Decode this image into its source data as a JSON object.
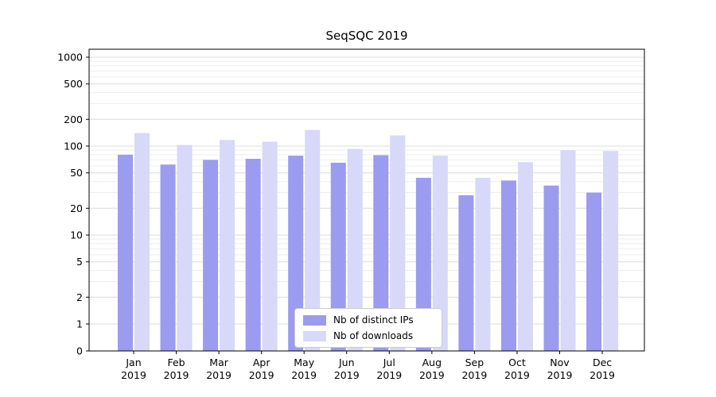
{
  "chart_data": {
    "type": "bar",
    "title": "SeqSQC 2019",
    "yscale": "symlog",
    "grid": "horizontal major + log minor gridlines",
    "legend_position": "bottom-center-inside",
    "background_color": "#ffffff",
    "categories": [
      "Jan 2019",
      "Feb 2019",
      "Mar 2019",
      "Apr 2019",
      "May 2019",
      "Jun 2019",
      "Jul 2019",
      "Aug 2019",
      "Sep 2019",
      "Oct 2019",
      "Nov 2019",
      "Dec 2019"
    ],
    "series": [
      {
        "name": "Nb of distinct IPs",
        "color": "#9b9bef",
        "values": [
          80,
          62,
          70,
          72,
          78,
          65,
          79,
          44,
          28,
          41,
          36,
          30
        ]
      },
      {
        "name": "Nb of downloads",
        "color": "#d8d8f8",
        "values": [
          140,
          103,
          117,
          112,
          152,
          93,
          132,
          78,
          44,
          66,
          90,
          88
        ]
      }
    ],
    "yticks": [
      0,
      1,
      2,
      5,
      10,
      20,
      50,
      100,
      200,
      500,
      1000
    ],
    "ylim": [
      0,
      1300
    ],
    "xlabel": "",
    "ylabel": ""
  }
}
